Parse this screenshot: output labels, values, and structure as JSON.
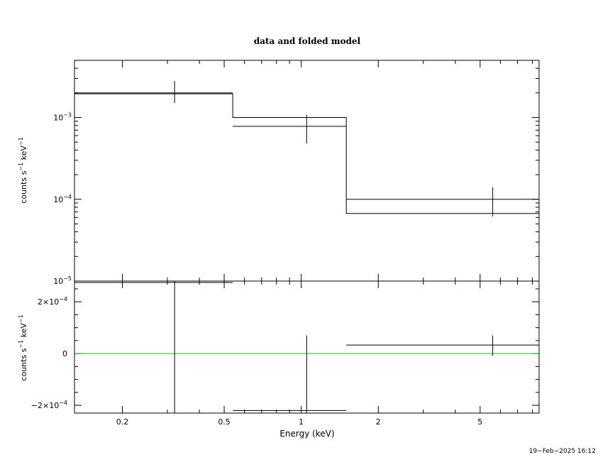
{
  "chart_data": [
    {
      "type": "line",
      "panel": "top",
      "title": "data and folded model",
      "xlabel": "",
      "ylabel": "counts s^-1 keV^-1",
      "xscale": "log",
      "yscale": "log",
      "xlim": [
        0.13,
        8.5
      ],
      "ylim": [
        1e-05,
        0.005
      ],
      "y_ticks": [
        {
          "value": 1e-05,
          "label": "10",
          "exp": "−5"
        },
        {
          "value": 0.0001,
          "label": "10",
          "exp": "−4"
        },
        {
          "value": 0.001,
          "label": "10",
          "exp": "−3"
        }
      ],
      "data": [
        {
          "x": 0.32,
          "xlo": 0.13,
          "xhi": 0.54,
          "y": 0.002,
          "ylo": 0.0015,
          "yhi": 0.0028
        },
        {
          "x": 1.05,
          "xlo": 0.54,
          "xhi": 1.5,
          "y": 0.00078,
          "ylo": 0.00048,
          "yhi": 0.00108
        },
        {
          "x": 5.6,
          "xlo": 1.5,
          "xhi": 8.5,
          "y": 0.0001,
          "ylo": 6.2e-05,
          "yhi": 0.00014
        }
      ],
      "model": [
        {
          "xlo": 0.13,
          "xhi": 0.54,
          "y": 0.00195
        },
        {
          "xlo": 0.54,
          "xhi": 1.5,
          "y": 0.001
        },
        {
          "xlo": 1.5,
          "xhi": 8.5,
          "y": 6.7e-05
        }
      ]
    },
    {
      "type": "line",
      "panel": "bottom",
      "xlabel": "Energy (keV)",
      "ylabel": "counts s^-1 keV^-1",
      "xscale": "log",
      "yscale": "linear",
      "xlim": [
        0.13,
        8.5
      ],
      "ylim": [
        -0.00023,
        0.00028
      ],
      "x_ticks": [
        {
          "value": 0.2,
          "label": "0.2"
        },
        {
          "value": 0.5,
          "label": "0.5"
        },
        {
          "value": 1,
          "label": "1"
        },
        {
          "value": 2,
          "label": "2"
        },
        {
          "value": 5,
          "label": "5"
        }
      ],
      "y_ticks": [
        {
          "value": 0.0002,
          "label": "2×10",
          "exp": "−4"
        },
        {
          "value": 0,
          "label": "0",
          "exp": ""
        },
        {
          "value": -0.0002,
          "label": "−2×10",
          "exp": "−4"
        }
      ],
      "zero_line_color": "#00cc00",
      "data": [
        {
          "x": 0.32,
          "xlo": 0.13,
          "xhi": 0.54,
          "y": 0.000275,
          "ylo": -0.00023,
          "yhi": 0.00028
        },
        {
          "x": 1.05,
          "xlo": 0.54,
          "xhi": 1.5,
          "y": -0.00022,
          "ylo": -0.00023,
          "yhi": 7e-05
        },
        {
          "x": 5.6,
          "xlo": 1.5,
          "xhi": 8.5,
          "y": 3.3e-05,
          "ylo": -8e-06,
          "yhi": 7e-05
        }
      ]
    }
  ],
  "timestamp": "19−Feb−2025 16:12"
}
